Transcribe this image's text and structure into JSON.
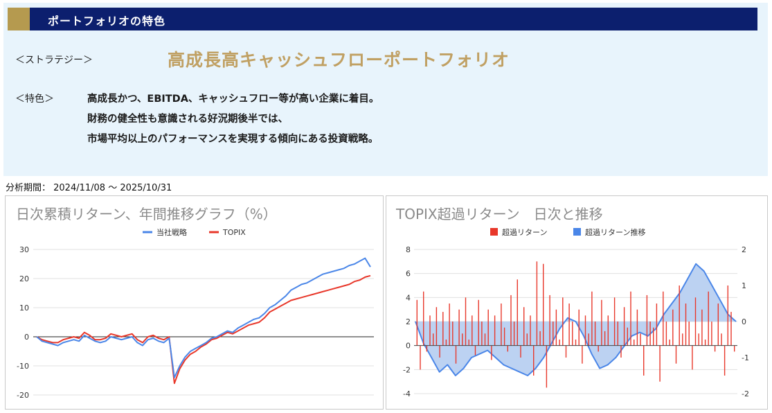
{
  "header": {
    "title": "ポートフォリオの特色"
  },
  "strategy": {
    "label": "＜ストラテジー＞",
    "name": "高成長高キャッシュフローポートフォリオ"
  },
  "features": {
    "label": "＜特色＞",
    "lines": [
      "高成長かつ、EBITDA、キャッシュフロー等が高い企業に着目。",
      "財務の健全性も意識される好況期後半では、",
      "市場平均以上のパフォーマンスを実現する傾向にある投資戦略。"
    ]
  },
  "period": "分析期間： 2024/11/08 〜 2025/10/31",
  "colors": {
    "navy": "#0c1f6e",
    "gold": "#c0a063",
    "blue": "#4a86e8",
    "red": "#e8372a",
    "area": "#bcd2f2"
  },
  "chart_data": [
    {
      "type": "line",
      "title": "日次累積リターン、年間推移グラフ（%）",
      "ylim": [
        -20,
        30
      ],
      "yticks": [
        30,
        20,
        10,
        0,
        -10,
        -20
      ],
      "legend_position": "top",
      "grid": true,
      "series": [
        {
          "name": "当社戦略",
          "color": "#4a86e8",
          "values": [
            0,
            -1.5,
            -2,
            -2.5,
            -3,
            -2,
            -1.5,
            -1,
            -1.5,
            0.5,
            -0.5,
            -1.5,
            -2,
            -1.5,
            0,
            -0.5,
            -1,
            -0.5,
            0,
            -2,
            -3,
            -1,
            -0.5,
            -1.5,
            -2,
            -0.5,
            -14,
            -10,
            -7,
            -5,
            -4,
            -3,
            -2,
            -0.5,
            0,
            1,
            2,
            1.5,
            3,
            4,
            5,
            6,
            6.5,
            8,
            10,
            11,
            12.5,
            14,
            16,
            17,
            18,
            18.5,
            19.5,
            20.5,
            21.5,
            22,
            22.5,
            23,
            23.5,
            24.5,
            25,
            26,
            27,
            24
          ]
        },
        {
          "name": "TOPIX",
          "color": "#e8372a",
          "values": [
            0,
            -1,
            -1.5,
            -2,
            -2,
            -1,
            -0.5,
            0,
            -0.5,
            1.5,
            0.5,
            -1,
            -1,
            -0.5,
            1,
            0.5,
            0,
            0.5,
            1,
            -1,
            -2,
            0,
            0.5,
            -0.5,
            -1,
            0,
            -16,
            -11,
            -8,
            -6,
            -5,
            -3.5,
            -2.5,
            -1,
            -0.5,
            0.5,
            1.5,
            1,
            2,
            3,
            4,
            4.5,
            5,
            6.5,
            8.5,
            9.5,
            10.5,
            11.5,
            12.5,
            13,
            13.5,
            14,
            14.5,
            15,
            15.5,
            16,
            16.5,
            17,
            17.5,
            18,
            19,
            19.5,
            20.5,
            21
          ]
        }
      ]
    },
    {
      "type": "bar",
      "title": "TOPIX超過リターン　日次と推移",
      "ylim": [
        -4,
        8
      ],
      "yticks": [
        8,
        6,
        4,
        2,
        0,
        -2,
        -4
      ],
      "y2lim": [
        -2,
        2
      ],
      "y2ticks": [
        2,
        1,
        0,
        -1,
        -2
      ],
      "legend_position": "top",
      "grid": true,
      "series": [
        {
          "name": "超過リターン",
          "color": "#e8372a",
          "axis": "left",
          "values": [
            3.8,
            -2,
            4.5,
            -0.5,
            2.5,
            1,
            3.2,
            -1,
            2.8,
            0.5,
            3.5,
            2,
            -1.5,
            3,
            1,
            4,
            0.5,
            2.5,
            -0.8,
            3.8,
            2,
            1,
            3,
            -1.2,
            2.5,
            0,
            3.5,
            1.5,
            -0.5,
            4.2,
            2,
            5.5,
            -1,
            3.2,
            1,
            2.5,
            -2.5,
            7,
            1.2,
            6.8,
            -3.5,
            4.2,
            2,
            3,
            0.5,
            4,
            -1,
            3.5,
            2,
            0.5,
            3,
            -1.5,
            2.5,
            1,
            4.5,
            2,
            -0.5,
            3.8,
            1.2,
            2.5,
            0,
            4,
            2,
            -1,
            3.2,
            1.5,
            4.5,
            0.5,
            3,
            1,
            -2.5,
            4.2,
            2,
            1.5,
            3.5,
            -3,
            4.5,
            2,
            0.5,
            3,
            -1.5,
            5,
            1,
            3.5,
            2,
            -2,
            4,
            1,
            3,
            0.5,
            4.5,
            2,
            -0.5,
            3.5,
            1,
            -2.5,
            5,
            2.8,
            -0.5
          ]
        },
        {
          "name": "超過リターン推移",
          "color": "#4a86e8",
          "fill": "#bcd2f2",
          "axis": "right",
          "values": [
            0,
            -0.6,
            -1,
            -1.4,
            -1.2,
            -1.5,
            -1.3,
            -1.0,
            -0.9,
            -0.8,
            -1.0,
            -1.2,
            -1.3,
            -1.4,
            -1.5,
            -1.3,
            -1.0,
            -0.6,
            -0.2,
            0.1,
            0,
            -0.4,
            -0.9,
            -1.3,
            -1.2,
            -1.0,
            -0.7,
            -0.4,
            -0.3,
            -0.4,
            -0.2,
            0.2,
            0.5,
            0.8,
            1.2,
            1.6,
            1.4,
            1.0,
            0.6,
            0.2,
            0
          ]
        }
      ]
    }
  ]
}
